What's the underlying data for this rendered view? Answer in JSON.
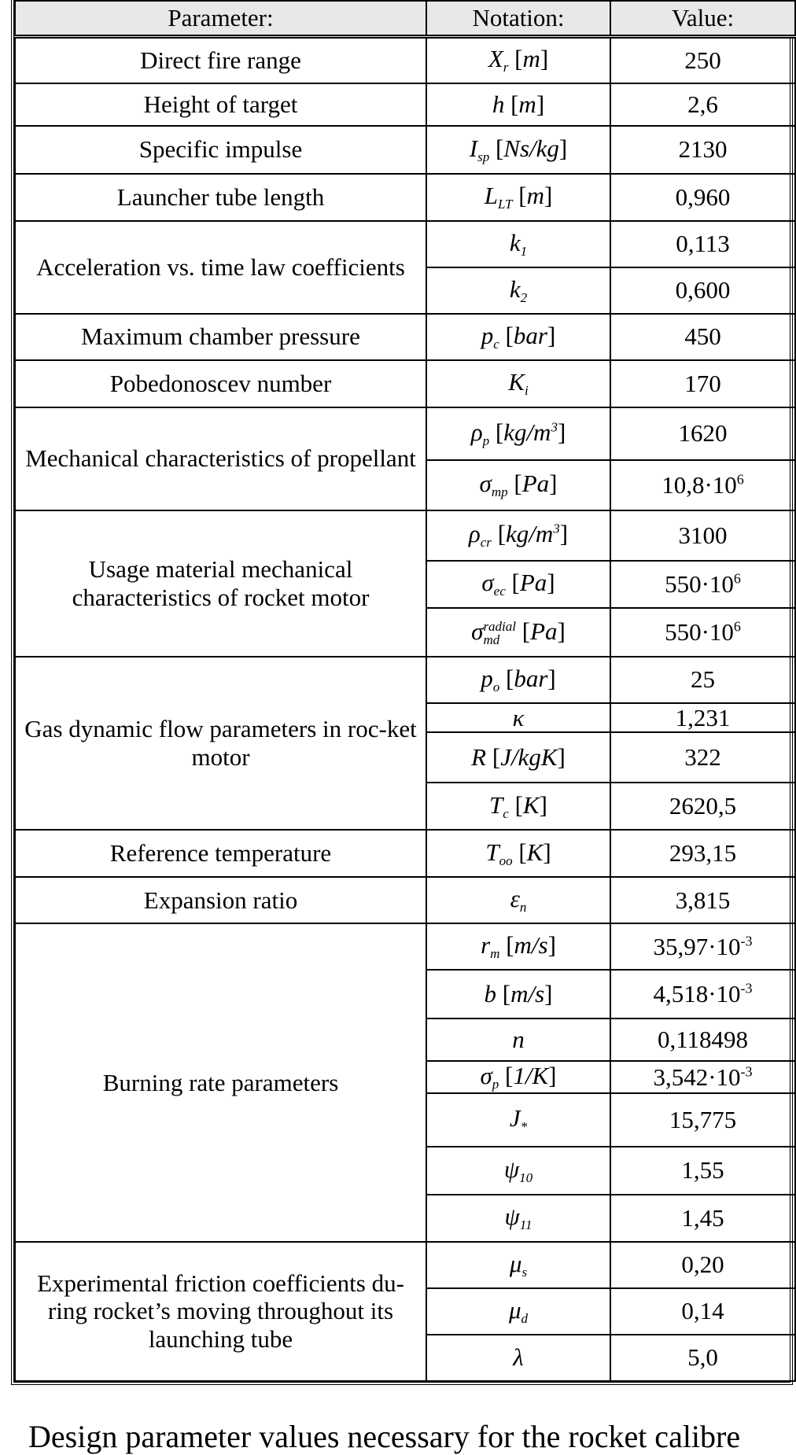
{
  "header": {
    "parameter": "Parameter:",
    "notation": "Notation:",
    "value": "Value:"
  },
  "groups": [
    {
      "parameter": "Direct fire range",
      "rows": [
        {
          "notation": {
            "sym": "X",
            "sub": "r",
            "unit": "m"
          },
          "value": {
            "base": "250"
          }
        }
      ]
    },
    {
      "parameter": "Height of target",
      "rows": [
        {
          "notation": {
            "sym": "h",
            "unit": "m"
          },
          "value": {
            "base": "2,6"
          }
        }
      ]
    },
    {
      "parameter": "Specific impulse",
      "rows": [
        {
          "notation": {
            "sym": "I",
            "sub": "sp",
            "unit": "Ns/kg"
          },
          "value": {
            "base": "2130"
          }
        }
      ]
    },
    {
      "parameter": "Launcher tube length",
      "rows": [
        {
          "notation": {
            "sym": "L",
            "sub": "LT",
            "unit": "m"
          },
          "value": {
            "base": "0,960"
          }
        }
      ]
    },
    {
      "parameter": "Acceleration vs. time law coefficients",
      "rows": [
        {
          "notation": {
            "sym": "k",
            "sub": "1"
          },
          "value": {
            "base": "0,113"
          }
        },
        {
          "notation": {
            "sym": "k",
            "sub": "2"
          },
          "value": {
            "base": "0,600"
          }
        }
      ]
    },
    {
      "parameter": "Maximum chamber pressure",
      "rows": [
        {
          "notation": {
            "sym": "p",
            "sub": "c",
            "unit": "bar"
          },
          "value": {
            "base": "450"
          }
        }
      ]
    },
    {
      "parameter": "Pobedonoscev number",
      "rows": [
        {
          "notation": {
            "sym": "K",
            "sub": "i"
          },
          "value": {
            "base": "170"
          }
        }
      ]
    },
    {
      "parameter": "Mechanical characteristics of propellant",
      "rows": [
        {
          "notation": {
            "sym": "ρ",
            "sub": "p",
            "unit": "kg/m",
            "unit_sup": "3"
          },
          "value": {
            "base": "1620"
          }
        },
        {
          "notation": {
            "sym": "σ",
            "sub": "mp",
            "unit": "Pa"
          },
          "value": {
            "base": "10,8·10",
            "exp": "6"
          }
        }
      ]
    },
    {
      "parameter": "Usage material mechanical characteristics of rocket motor",
      "rows": [
        {
          "notation": {
            "sym": "ρ",
            "sub": "cr",
            "unit": "kg/m",
            "unit_sup": "3"
          },
          "value": {
            "base": "3100"
          }
        },
        {
          "notation": {
            "sym": "σ",
            "sub": "ec",
            "unit": "Pa"
          },
          "value": {
            "base": "550·10",
            "exp": "6"
          }
        },
        {
          "notation": {
            "sym": "σ",
            "sub": "md",
            "sup": "radial",
            "unit": "Pa"
          },
          "value": {
            "base": "550·10",
            "exp": "6"
          }
        }
      ]
    },
    {
      "parameter": "Gas dynamic flow parameters in roc-ket motor",
      "rows": [
        {
          "notation": {
            "sym": "p",
            "sub": "o",
            "unit": "bar"
          },
          "value": {
            "base": "25"
          }
        },
        {
          "notation": {
            "sym": "κ"
          },
          "value": {
            "base": "1,231"
          }
        },
        {
          "notation": {
            "sym": "R",
            "unit": "J/kgK"
          },
          "value": {
            "base": "322"
          }
        },
        {
          "notation": {
            "sym": "T",
            "sub": "c",
            "unit": "K"
          },
          "value": {
            "base": "2620,5"
          }
        }
      ]
    },
    {
      "parameter": "Reference temperature",
      "rows": [
        {
          "notation": {
            "sym": "T",
            "sub": "oo",
            "unit": "K"
          },
          "value": {
            "base": "293,15"
          }
        }
      ]
    },
    {
      "parameter": "Expansion  ratio",
      "rows": [
        {
          "notation": {
            "sym": "ε",
            "sub": "n"
          },
          "value": {
            "base": "3,815"
          }
        }
      ]
    },
    {
      "parameter": "Burning rate parameters",
      "rows": [
        {
          "notation": {
            "sym": "r",
            "sub": "m",
            "unit": "m/s"
          },
          "value": {
            "base": "35,97·10",
            "exp": "-3"
          }
        },
        {
          "notation": {
            "sym": "b",
            "unit": "m/s"
          },
          "value": {
            "base": "4,518·10",
            "exp": "-3"
          }
        },
        {
          "notation": {
            "sym": "n"
          },
          "value": {
            "base": "0,118498"
          }
        },
        {
          "notation": {
            "sym": "σ",
            "sub": "p",
            "unit": "1/K"
          },
          "value": {
            "base": "3,542·10",
            "exp": "-3"
          }
        },
        {
          "notation": {
            "sym": "J",
            "sub": "*"
          },
          "value": {
            "base": "15,775"
          }
        },
        {
          "notation": {
            "sym": "ψ",
            "sub": "10"
          },
          "value": {
            "base": "1,55"
          }
        },
        {
          "notation": {
            "sym": "ψ",
            "sub": "11"
          },
          "value": {
            "base": "1,45"
          }
        }
      ]
    },
    {
      "parameter": "Experimental friction coefficients du-ring rocket’s moving throughout its launching tube",
      "rows": [
        {
          "notation": {
            "sym": "μ",
            "sub": "s"
          },
          "value": {
            "base": "0,20"
          }
        },
        {
          "notation": {
            "sym": "μ",
            "sub": "d"
          },
          "value": {
            "base": "0,14"
          }
        },
        {
          "notation": {
            "sym": "λ"
          },
          "value": {
            "base": "5,0"
          }
        }
      ]
    }
  ],
  "caption": "Design parameter values necessary for the rocket calibre"
}
